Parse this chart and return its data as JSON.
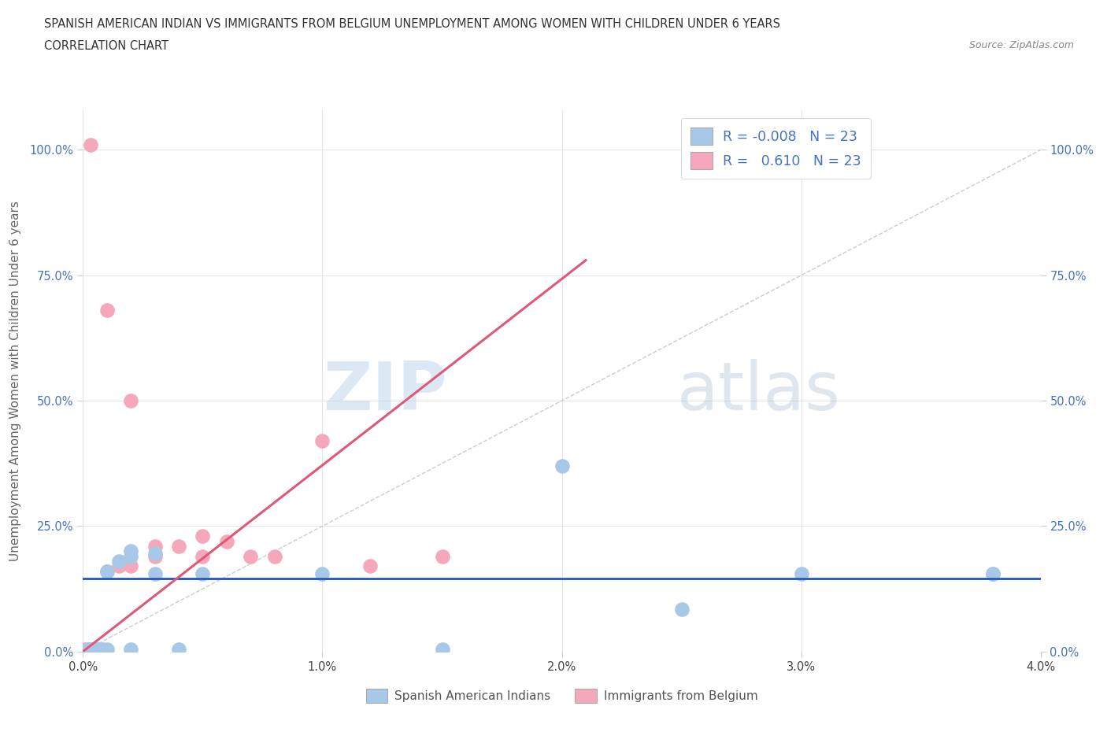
{
  "title_line1": "SPANISH AMERICAN INDIAN VS IMMIGRANTS FROM BELGIUM UNEMPLOYMENT AMONG WOMEN WITH CHILDREN UNDER 6 YEARS",
  "title_line2": "CORRELATION CHART",
  "source": "Source: ZipAtlas.com",
  "ylabel": "Unemployment Among Women with Children Under 6 years",
  "xlim": [
    0.0,
    0.04
  ],
  "ylim": [
    0.0,
    1.08
  ],
  "yticks": [
    0.0,
    0.25,
    0.5,
    0.75,
    1.0
  ],
  "ytick_labels": [
    "0.0%",
    "25.0%",
    "50.0%",
    "75.0%",
    "100.0%"
  ],
  "xticks": [
    0.0,
    0.01,
    0.02,
    0.03,
    0.04
  ],
  "xtick_labels": [
    "0.0%",
    "1.0%",
    "2.0%",
    "3.0%",
    "4.0%"
  ],
  "blue_scatter_color": "#a8c8e8",
  "pink_scatter_color": "#f5a8bc",
  "blue_line_color": "#3060c0",
  "pink_line_color": "#e05878",
  "blue_R": -0.008,
  "blue_N": 23,
  "pink_R": 0.61,
  "pink_N": 23,
  "watermark_zip": "ZIP",
  "watermark_atlas": "atlas",
  "blue_scatter_x": [
    0.0002,
    0.0003,
    0.0004,
    0.0005,
    0.0006,
    0.0008,
    0.001,
    0.001,
    0.0015,
    0.002,
    0.002,
    0.002,
    0.003,
    0.003,
    0.004,
    0.005,
    0.01,
    0.015,
    0.02,
    0.025,
    0.03,
    0.038,
    0.038
  ],
  "blue_scatter_y": [
    0.005,
    0.005,
    0.005,
    0.005,
    0.005,
    0.005,
    0.005,
    0.16,
    0.18,
    0.005,
    0.19,
    0.2,
    0.155,
    0.195,
    0.005,
    0.155,
    0.155,
    0.005,
    0.37,
    0.085,
    0.155,
    0.155,
    0.155
  ],
  "pink_scatter_x": [
    0.0001,
    0.0002,
    0.0003,
    0.0004,
    0.0005,
    0.0006,
    0.0008,
    0.001,
    0.001,
    0.0015,
    0.002,
    0.002,
    0.003,
    0.003,
    0.004,
    0.005,
    0.005,
    0.006,
    0.007,
    0.008,
    0.01,
    0.012,
    0.015
  ],
  "pink_scatter_y": [
    0.005,
    0.005,
    1.01,
    0.005,
    0.005,
    0.005,
    0.005,
    0.16,
    0.68,
    0.17,
    0.17,
    0.5,
    0.19,
    0.21,
    0.21,
    0.19,
    0.23,
    0.22,
    0.19,
    0.19,
    0.42,
    0.17,
    0.19
  ],
  "background_color": "#ffffff",
  "grid_color": "#e5e5e5",
  "blue_line_x": [
    0.0,
    0.04
  ],
  "blue_line_y": [
    0.145,
    0.145
  ],
  "pink_line_x": [
    0.0,
    0.021
  ],
  "pink_line_y": [
    0.0,
    0.78
  ]
}
